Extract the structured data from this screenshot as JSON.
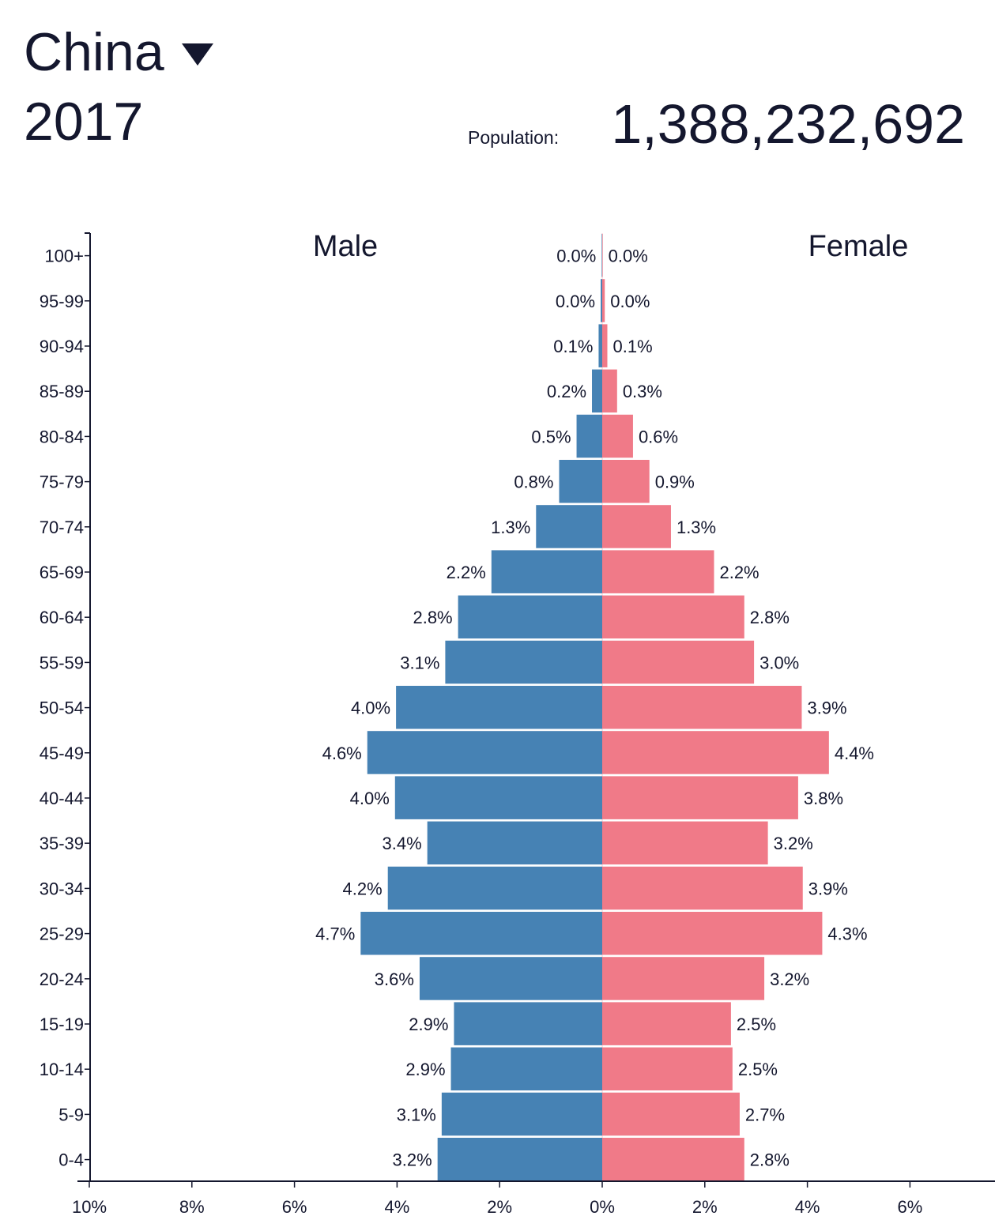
{
  "header": {
    "country": "China",
    "year": "2017",
    "population_label": "Population:",
    "population_value": "1,388,232,692"
  },
  "icons": {
    "dropdown": "caret-down-icon"
  },
  "colors": {
    "male": "#4682b4",
    "female": "#f07a88",
    "text": "#14172e",
    "axis": "#14172e"
  },
  "chart_data": {
    "type": "bar",
    "orientation": "horizontal",
    "layout": "population-pyramid",
    "categories": [
      "100+",
      "95-99",
      "90-94",
      "85-89",
      "80-84",
      "75-79",
      "70-74",
      "65-69",
      "60-64",
      "55-59",
      "50-54",
      "45-49",
      "40-44",
      "35-39",
      "30-34",
      "25-29",
      "20-24",
      "15-19",
      "10-14",
      "5-9",
      "0-4"
    ],
    "series": [
      {
        "name": "Male",
        "side": "left",
        "values": [
          0.01,
          0.03,
          0.07,
          0.2,
          0.5,
          0.84,
          1.29,
          2.16,
          2.81,
          3.06,
          4.02,
          4.58,
          4.04,
          3.41,
          4.18,
          4.71,
          3.56,
          2.89,
          2.95,
          3.13,
          3.21
        ],
        "labels": [
          "0.0%",
          "0.0%",
          "0.1%",
          "0.2%",
          "0.5%",
          "0.8%",
          "1.3%",
          "2.2%",
          "2.8%",
          "3.1%",
          "4.0%",
          "4.6%",
          "4.0%",
          "3.4%",
          "4.2%",
          "4.7%",
          "3.6%",
          "2.9%",
          "2.9%",
          "3.1%",
          "3.2%"
        ]
      },
      {
        "name": "Female",
        "side": "right",
        "values": [
          0.01,
          0.05,
          0.1,
          0.29,
          0.6,
          0.92,
          1.34,
          2.18,
          2.77,
          2.96,
          3.89,
          4.42,
          3.82,
          3.23,
          3.91,
          4.29,
          3.16,
          2.51,
          2.54,
          2.68,
          2.77
        ],
        "labels": [
          "0.0%",
          "0.0%",
          "0.1%",
          "0.3%",
          "0.6%",
          "0.9%",
          "1.3%",
          "2.2%",
          "2.8%",
          "3.0%",
          "3.9%",
          "4.4%",
          "3.8%",
          "3.2%",
          "3.9%",
          "4.3%",
          "3.2%",
          "2.5%",
          "2.5%",
          "2.7%",
          "2.8%"
        ]
      }
    ],
    "xaxis": {
      "ticks": [
        -10,
        -8,
        -6,
        -4,
        -2,
        0,
        2,
        4,
        6
      ],
      "tick_labels": [
        "10%",
        "8%",
        "6%",
        "4%",
        "2%",
        "0%",
        "2%",
        "4%",
        "6%"
      ],
      "range": [
        -10,
        7.5
      ]
    },
    "unit": "%",
    "grid": false
  }
}
